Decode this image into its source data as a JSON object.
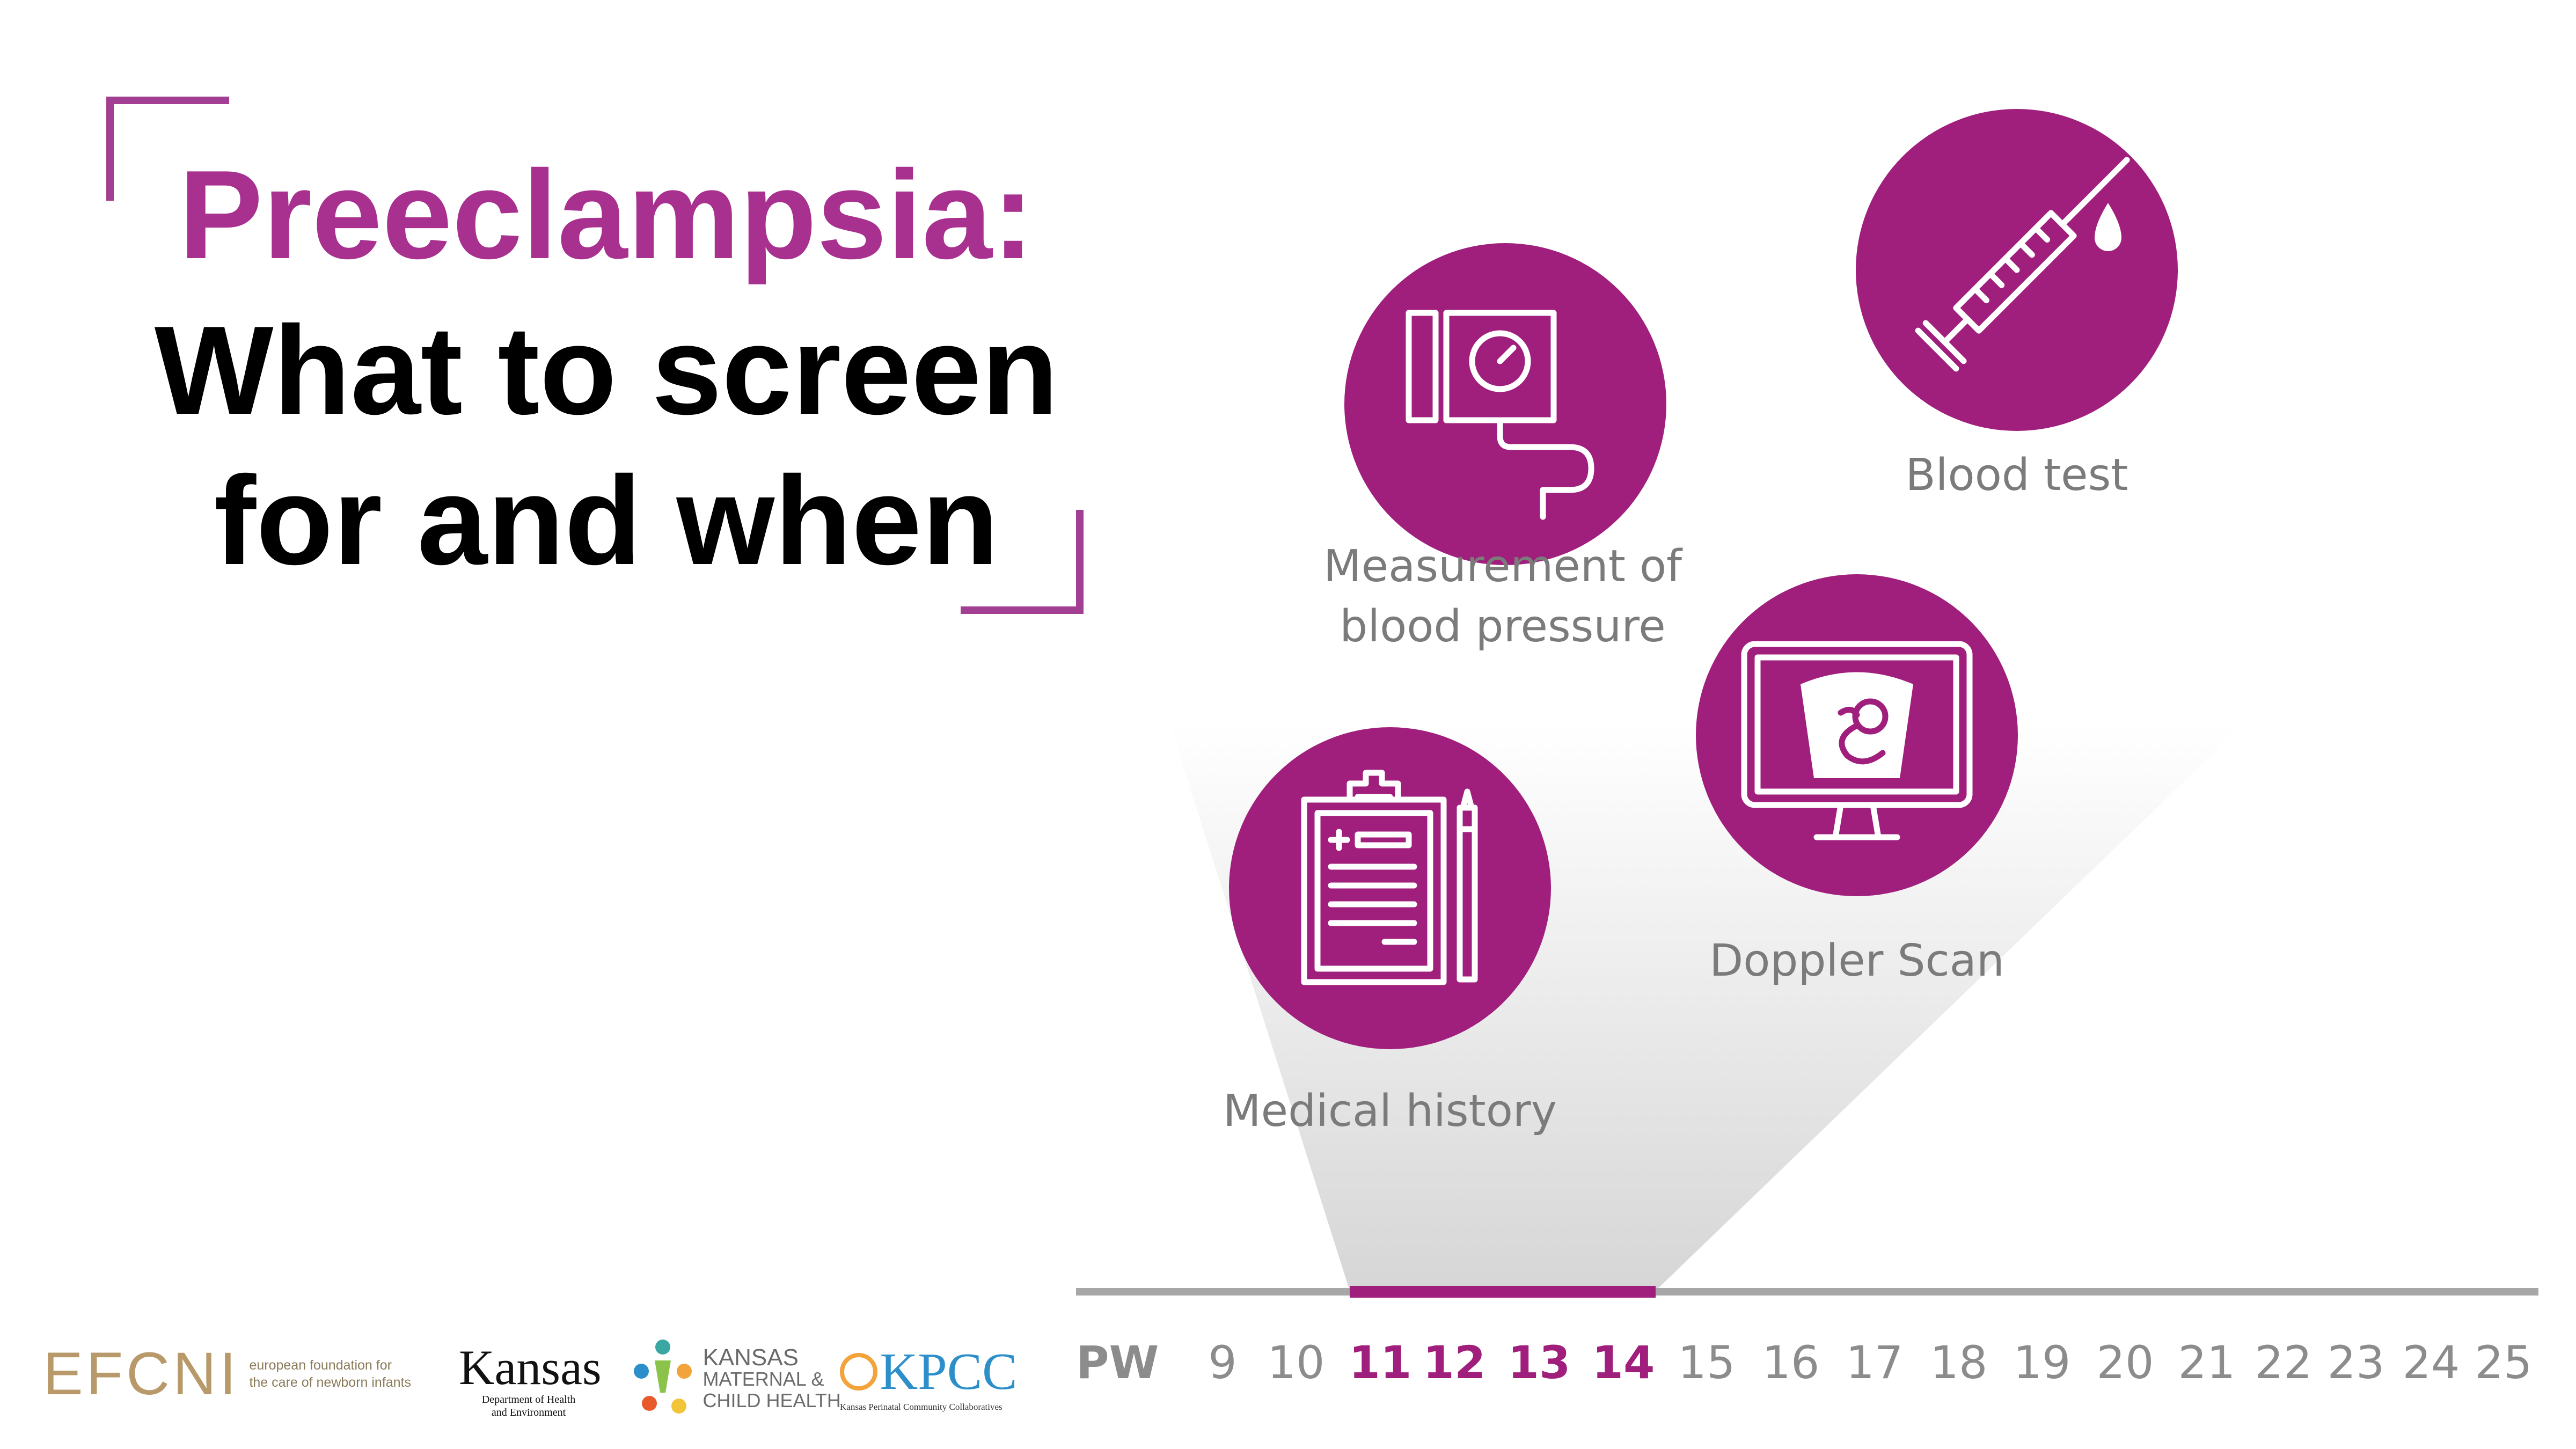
{
  "title": {
    "line1": "Preeclampsia:",
    "line2": "What to screen",
    "line3": "for and when"
  },
  "steps": {
    "blood_pressure": {
      "line1": "Measurement of",
      "line2": "blood pressure",
      "icon": "blood-pressure-monitor-icon"
    },
    "blood_test": {
      "label": "Blood test",
      "icon": "syringe-icon"
    },
    "doppler": {
      "label": "Doppler Scan",
      "icon": "ultrasound-monitor-icon"
    },
    "medical_history": {
      "label": "Medical history",
      "icon": "clipboard-icon"
    }
  },
  "timeline": {
    "label": "PW",
    "weeks": [
      "9",
      "10",
      "11",
      "12",
      "13",
      "14",
      "15",
      "16",
      "17",
      "18",
      "19",
      "20",
      "21",
      "22",
      "23",
      "24",
      "25"
    ],
    "highlighted": [
      "11",
      "12",
      "13",
      "14"
    ]
  },
  "logos": {
    "efcni": {
      "wordmark": "EFCNI",
      "tagline1": "european foundation for",
      "tagline2": "the care of newborn infants"
    },
    "kdhe": {
      "wordmark": "Kansas",
      "sub1": "Department of Health",
      "sub2": "and Environment"
    },
    "kmch": {
      "line1": "KANSAS",
      "line2": "MATERNAL &",
      "line3": "CHILD HEALTH"
    },
    "kpcc": {
      "wordmark": "KPCC",
      "sub": "Kansas Perinatal Community Collaboratives"
    }
  },
  "colors": {
    "accent": "#a01e7c",
    "title_accent": "#a8308f",
    "label_gray": "#7b7b7b"
  }
}
